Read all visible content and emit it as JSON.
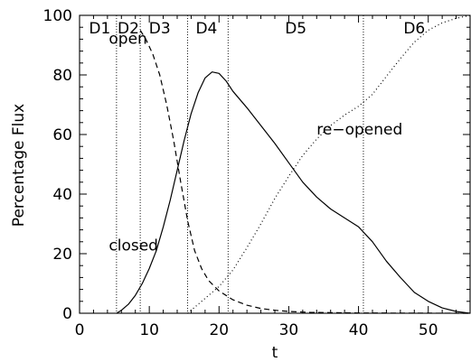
{
  "chart_data": {
    "type": "line",
    "xlabel": "t",
    "ylabel": "Percentage Flux",
    "xlim": [
      0,
      56
    ],
    "ylim": [
      0,
      100
    ],
    "xticks": [
      0,
      10,
      20,
      30,
      40,
      50
    ],
    "yticks": [
      0,
      20,
      40,
      60,
      80,
      100
    ],
    "grid": false,
    "phase_boundaries": [
      5.3,
      8.7,
      15.5,
      21.3,
      40.7
    ],
    "phase_labels": [
      {
        "text": "D1",
        "x": 2.9
      },
      {
        "text": "D2",
        "x": 7.0
      },
      {
        "text": "D3",
        "x": 11.5
      },
      {
        "text": "D4",
        "x": 18.2
      },
      {
        "text": "D5",
        "x": 31.0
      },
      {
        "text": "D6",
        "x": 48.0
      }
    ],
    "series": [
      {
        "label": "open",
        "label_x": 4.2,
        "label_y": 90.5,
        "dash": "6,4",
        "x": [
          8.7,
          9.5,
          10.5,
          11.5,
          12.5,
          13.5,
          14.5,
          15.5,
          16.5,
          17.5,
          18.5,
          20,
          22,
          24,
          26,
          28,
          30,
          33,
          36,
          40,
          45,
          50,
          56
        ],
        "y": [
          95,
          92,
          87,
          80,
          70,
          58,
          44,
          31,
          21,
          15,
          11,
          7.5,
          4.5,
          2.7,
          1.6,
          1.0,
          0.6,
          0.3,
          0.2,
          0.1,
          0.05,
          0.02,
          0
        ]
      },
      {
        "label": "closed",
        "label_x": 4.2,
        "label_y": 21,
        "dash": "",
        "x": [
          5.3,
          6,
          7,
          8,
          9,
          10,
          11,
          12,
          13,
          14,
          15,
          16,
          17,
          18,
          19,
          20,
          21,
          22,
          24,
          26,
          28,
          30,
          32,
          34,
          36,
          38,
          40,
          42,
          44,
          46,
          48,
          50,
          52,
          54,
          56
        ],
        "y": [
          0,
          1,
          3,
          6,
          10,
          15,
          21,
          29,
          38,
          48,
          58,
          67,
          74,
          79,
          81,
          80.5,
          78,
          74.5,
          69,
          63,
          57,
          50.5,
          44,
          39,
          35,
          32,
          29,
          24,
          17.5,
          12,
          7,
          4,
          1.8,
          0.6,
          0
        ]
      },
      {
        "label": "re−opened",
        "label_x": 34.0,
        "label_y": 60,
        "dash": "1,3",
        "x": [
          15.5,
          16.5,
          18,
          20,
          22,
          24,
          26,
          28,
          30,
          32,
          34,
          36,
          38,
          40,
          42,
          44,
          46,
          48,
          50,
          52,
          54,
          56
        ],
        "y": [
          0,
          2,
          5,
          9,
          14.5,
          22,
          30,
          38.5,
          46,
          53,
          58.5,
          63,
          66.5,
          69.5,
          73.5,
          79.5,
          85.5,
          91,
          95,
          97.5,
          99,
          100
        ]
      }
    ]
  }
}
